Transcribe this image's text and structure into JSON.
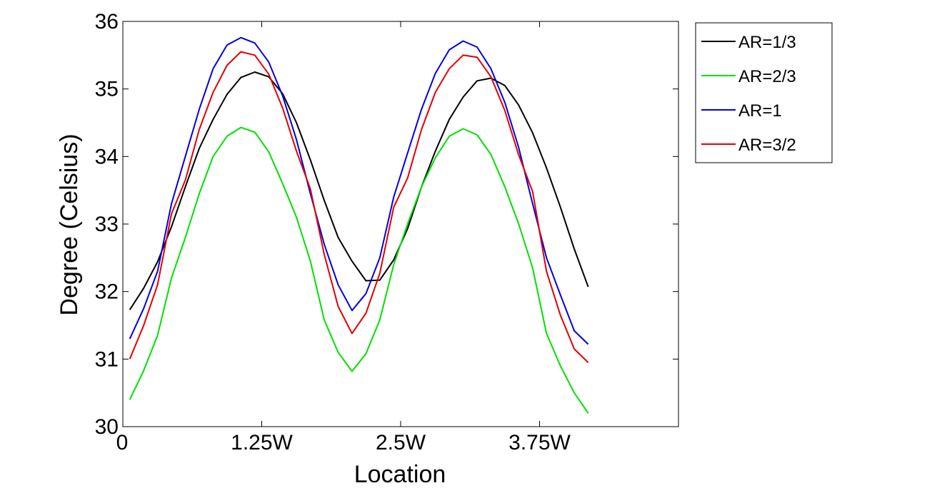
{
  "chart_data": {
    "type": "line",
    "title": "",
    "xlabel": "Location",
    "ylabel": "Degree (Celsius)",
    "xlim": [
      0,
      5
    ],
    "ylim": [
      30,
      36
    ],
    "x_ticks": [
      {
        "value": 0,
        "label": "0"
      },
      {
        "value": 1.25,
        "label": "1.25W"
      },
      {
        "value": 2.5,
        "label": "2.5W"
      },
      {
        "value": 3.75,
        "label": "3.75W"
      }
    ],
    "y_ticks": [
      30,
      31,
      32,
      33,
      34,
      35,
      36
    ],
    "legend_position": "outside-top-right",
    "grid": false,
    "x": [
      0.0625,
      0.1875,
      0.3125,
      0.4375,
      0.5625,
      0.6875,
      0.8125,
      0.9375,
      1.0625,
      1.1875,
      1.3125,
      1.4375,
      1.5625,
      1.6875,
      1.8125,
      1.9375,
      2.0625,
      2.1875,
      2.3125,
      2.4375,
      2.5625,
      2.6875,
      2.8125,
      2.9375,
      3.0625,
      3.1875,
      3.3125,
      3.4375,
      3.5625,
      3.6875,
      3.8125,
      3.9375,
      4.0625,
      4.1875
    ],
    "series": [
      {
        "name": "AR=1/3",
        "color": "#000000",
        "values": [
          31.73,
          32.05,
          32.44,
          32.96,
          33.55,
          34.12,
          34.55,
          34.92,
          35.17,
          35.25,
          35.18,
          34.93,
          34.5,
          33.95,
          33.35,
          32.8,
          32.45,
          32.16,
          32.17,
          32.47,
          32.93,
          33.55,
          34.08,
          34.55,
          34.88,
          35.12,
          35.16,
          35.05,
          34.76,
          34.35,
          33.83,
          33.25,
          32.63,
          32.07
        ]
      },
      {
        "name": "AR=2/3",
        "color": "#00e000",
        "values": [
          30.4,
          30.83,
          31.35,
          32.2,
          32.8,
          33.45,
          34.0,
          34.3,
          34.43,
          34.36,
          34.07,
          33.6,
          33.1,
          32.45,
          31.58,
          31.1,
          30.82,
          31.08,
          31.58,
          32.4,
          33.0,
          33.55,
          33.98,
          34.3,
          34.41,
          34.32,
          34.03,
          33.55,
          33.0,
          32.35,
          31.38,
          30.9,
          30.5,
          30.2
        ]
      },
      {
        "name": "AR=1",
        "color": "#0000e0",
        "values": [
          31.3,
          31.75,
          32.3,
          33.3,
          34.0,
          34.7,
          35.3,
          35.65,
          35.76,
          35.68,
          35.4,
          34.9,
          34.25,
          33.45,
          32.7,
          32.1,
          31.72,
          31.97,
          32.5,
          33.4,
          34.05,
          34.7,
          35.23,
          35.58,
          35.71,
          35.62,
          35.3,
          34.8,
          34.13,
          33.3,
          32.5,
          31.95,
          31.42,
          31.22
        ]
      },
      {
        "name": "AR=3/2",
        "color": "#e00000",
        "values": [
          31.0,
          31.5,
          32.1,
          33.15,
          33.65,
          34.4,
          34.95,
          35.35,
          35.55,
          35.5,
          35.22,
          34.72,
          34.08,
          33.52,
          32.55,
          31.78,
          31.38,
          31.68,
          32.27,
          33.25,
          33.68,
          34.4,
          34.95,
          35.3,
          35.5,
          35.47,
          35.18,
          34.68,
          34.02,
          33.48,
          32.3,
          31.65,
          31.15,
          30.95
        ]
      }
    ]
  }
}
